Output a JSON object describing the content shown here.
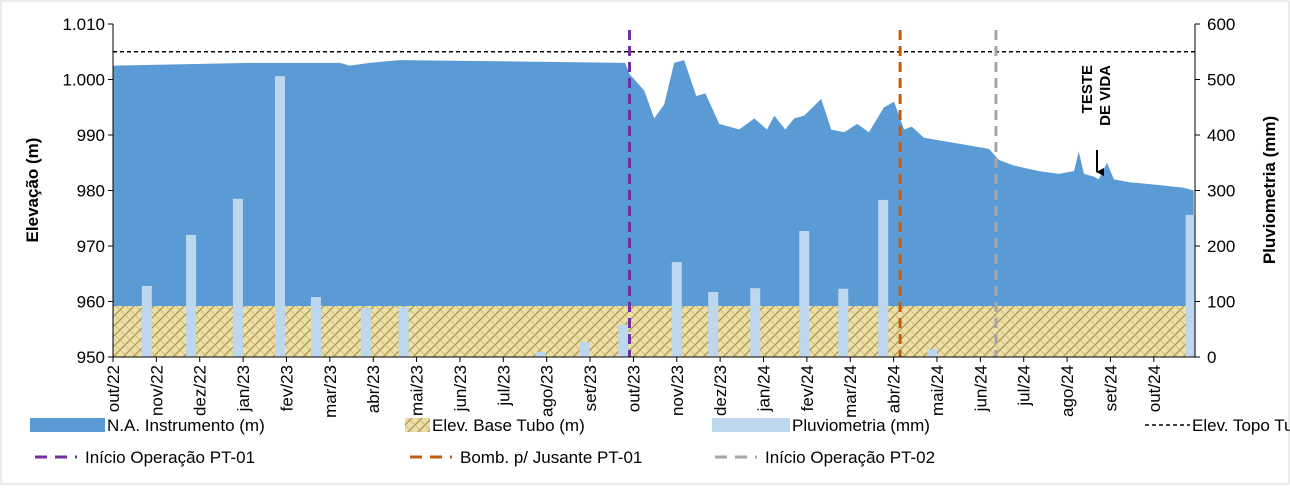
{
  "chart_data": {
    "type": "combo",
    "y_label": "Elevação (m)",
    "y2_label": "Pluviometria (mm)",
    "xlim": [
      0,
      24.95
    ],
    "xticks": [
      {
        "value": 0,
        "label": "out/22"
      },
      {
        "value": 1,
        "label": "nov/22"
      },
      {
        "value": 2,
        "label": "dez/22"
      },
      {
        "value": 3,
        "label": "jan/23"
      },
      {
        "value": 4,
        "label": "fev/23"
      },
      {
        "value": 5,
        "label": "mar/23"
      },
      {
        "value": 6,
        "label": "abr/23"
      },
      {
        "value": 7,
        "label": "mai/23"
      },
      {
        "value": 8,
        "label": "jun/23"
      },
      {
        "value": 9,
        "label": "jul/23"
      },
      {
        "value": 10,
        "label": "ago/23"
      },
      {
        "value": 11,
        "label": "set/23"
      },
      {
        "value": 12,
        "label": "out/23"
      },
      {
        "value": 13,
        "label": "nov/23"
      },
      {
        "value": 14,
        "label": "dez/23"
      },
      {
        "value": 15,
        "label": "jan/24"
      },
      {
        "value": 16,
        "label": "fev/24"
      },
      {
        "value": 17,
        "label": "mar/24"
      },
      {
        "value": 18,
        "label": "abr/24"
      },
      {
        "value": 19,
        "label": "mai/24"
      },
      {
        "value": 20,
        "label": "jun/24"
      },
      {
        "value": 21,
        "label": "jul/24"
      },
      {
        "value": 22,
        "label": "ago/24"
      },
      {
        "value": 23,
        "label": "set/24"
      },
      {
        "value": 24,
        "label": "out/24"
      }
    ],
    "ylim": [
      950,
      1010
    ],
    "yticks": [
      950,
      960,
      970,
      980,
      990,
      {
        "value": 1000,
        "label": "1.000"
      },
      {
        "value": 1010,
        "label": "1.010"
      }
    ],
    "y2lim": [
      0,
      600
    ],
    "y2ticks": [
      0,
      100,
      200,
      300,
      400,
      500,
      600
    ],
    "series": [
      {
        "name": "N.A. Instrumento (m)",
        "kind": "area",
        "color": "#5b9bd5",
        "x": [
          0,
          3.16,
          5.23,
          5.46,
          5.92,
          6.61,
          11.81,
          11.91,
          12.25,
          12.48,
          12.71,
          12.94,
          13.17,
          13.45,
          13.66,
          13.98,
          14.44,
          14.79,
          15.08,
          15.25,
          15.5,
          15.71,
          15.94,
          16.33,
          16.56,
          16.86,
          17.16,
          17.43,
          17.78,
          18.01,
          18.24,
          18.42,
          18.7,
          20.2,
          20.43,
          20.77,
          21.35,
          21.81,
          22.16,
          22.27,
          22.39,
          22.62,
          22.73,
          22.92,
          23.08,
          23.42,
          24.11,
          24.69,
          24.92
        ],
        "values": [
          1002.5,
          1003,
          1003,
          1002.5,
          1003,
          1003.5,
          1003,
          1001,
          998,
          993,
          995.5,
          1003,
          1003.5,
          997,
          997.5,
          992,
          991,
          993,
          991,
          993.5,
          991,
          993,
          993.5,
          996.5,
          991,
          990.5,
          992,
          990.5,
          995,
          996,
          991,
          991.5,
          989.5,
          987.5,
          985.5,
          984.5,
          983.5,
          983,
          983.5,
          987,
          983,
          982.5,
          982,
          985,
          982,
          981.5,
          981,
          980.5,
          980
        ]
      },
      {
        "name": "Elev. Base Tubo (m)",
        "kind": "hatch",
        "color": "#e6d89a",
        "x": [
          0,
          24.95
        ],
        "values": [
          959.2,
          959.2
        ]
      },
      {
        "name": "Pluviometria (mm)",
        "kind": "bar",
        "axis": "y2",
        "color": "#bdd7ee",
        "x": [
          0.78,
          1.8,
          2.88,
          3.85,
          4.68,
          5.83,
          6.7,
          9.86,
          10.87,
          11.77,
          13.0,
          13.84,
          14.81,
          15.94,
          16.84,
          17.76,
          18.89,
          24.85
        ],
        "values": [
          128,
          220,
          285,
          506,
          108,
          88,
          90,
          9,
          27,
          58,
          171,
          117,
          124,
          227,
          123,
          283,
          14,
          256
        ]
      },
      {
        "name": "Elev. Topo Tubo (m)",
        "kind": "dashed",
        "color": "#000000",
        "x": [
          0,
          24.95
        ],
        "values": [
          1005,
          1005
        ]
      }
    ],
    "vlines": [
      {
        "name": "Início Operação PT-01",
        "color": "#7030a0",
        "x": 11.91
      },
      {
        "name": "Bomb. p/ Jusante PT-01",
        "color": "#c55a11",
        "x": 18.15
      },
      {
        "name": "Início Operação PT-02",
        "color": "#a6a6a6",
        "x": 20.36
      }
    ],
    "annotation": [
      "TESTE",
      "DE VIDA"
    ]
  }
}
